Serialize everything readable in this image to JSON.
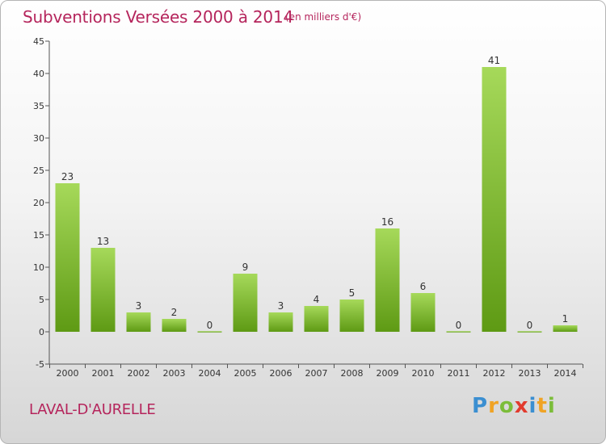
{
  "title": "Subventions Versées 2000 à 2014",
  "unit_note": "(en milliers d'€)",
  "commune": "LAVAL-D'AURELLE",
  "logo": {
    "text": "Proxiti",
    "letters": [
      "P",
      "r",
      "o",
      "x",
      "i",
      "t",
      "i"
    ]
  },
  "colors": {
    "title": "#b5255c",
    "bar_top": "#9fd24c",
    "bar_bottom": "#5e9a14",
    "axis": "#555555"
  },
  "chart_data": {
    "type": "bar",
    "title": "Subventions Versées 2000 à 2014",
    "categories": [
      "2000",
      "2001",
      "2002",
      "2003",
      "2004",
      "2005",
      "2006",
      "2007",
      "2008",
      "2009",
      "2010",
      "2011",
      "2012",
      "2013",
      "2014"
    ],
    "values": [
      23,
      13,
      3,
      2,
      0,
      9,
      3,
      4,
      5,
      16,
      6,
      0,
      41,
      0,
      1
    ],
    "ylim": [
      -5,
      45
    ],
    "yticks": [
      -5,
      0,
      5,
      10,
      15,
      20,
      25,
      30,
      35,
      40,
      45
    ],
    "xlabel": "",
    "ylabel": "",
    "grid": false,
    "data_labels": true
  }
}
